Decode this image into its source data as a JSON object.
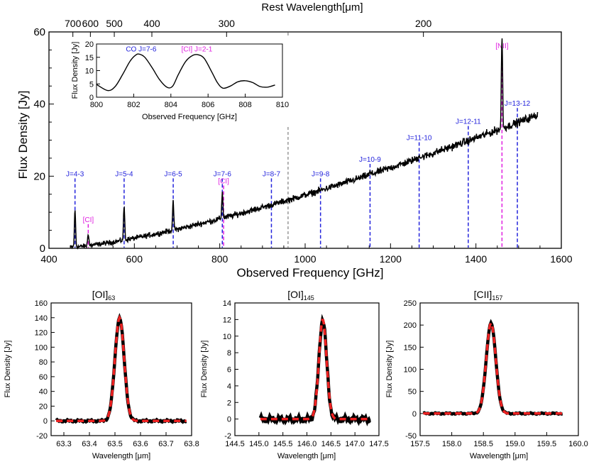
{
  "chart_data": [
    {
      "type": "line",
      "id": "main",
      "xlabel": "Observed Frequency [GHz]",
      "ylabel": "Flux Density [Jy]",
      "top_axis_label": "Rest Wavelength[μm]",
      "xlim": [
        400,
        1600
      ],
      "ylim": [
        0,
        60
      ],
      "xticks": [
        400,
        600,
        800,
        1000,
        1200,
        1400,
        1600
      ],
      "yticks": [
        0,
        20,
        40,
        60
      ],
      "top_ticks": [
        {
          "label": "700",
          "freq": 456
        },
        {
          "label": "600",
          "freq": 497
        },
        {
          "label": "500",
          "freq": 553
        },
        {
          "label": "400",
          "freq": 641
        },
        {
          "label": "300",
          "freq": 816
        },
        {
          "label": "200",
          "freq": 1277
        }
      ],
      "rest_frame_boundary_freq": 960,
      "continuum": {
        "start_freq": 450,
        "end_freq": 1545,
        "start_flux": 0.3,
        "end_flux": 37
      },
      "lines": [
        {
          "label": "J=4-3",
          "freq": 461,
          "peak": 10.5,
          "color": "#2323dc",
          "label_flux": 20
        },
        {
          "label": "[CI]",
          "freq": 492,
          "peak": 4.2,
          "color": "#e020e0",
          "label_flux": 7.3
        },
        {
          "label": "J=5-4",
          "freq": 576,
          "peak": 11.8,
          "color": "#2323dc",
          "label_flux": 20
        },
        {
          "label": "J=6-5",
          "freq": 691,
          "peak": 12.8,
          "color": "#2323dc",
          "label_flux": 20
        },
        {
          "label": "J=7-6",
          "freq": 806,
          "peak": 15.4,
          "color": "#2323dc",
          "label_flux": 20
        },
        {
          "label": "[CI]",
          "freq": 809,
          "peak": 14.5,
          "color": "#e020e0",
          "label_flux": 18
        },
        {
          "label": "J=8-7",
          "freq": 921,
          "peak": 11.6,
          "color": "#2323dc",
          "label_flux": 20
        },
        {
          "label": "J=9-8",
          "freq": 1036,
          "peak": 12.5,
          "color": "#2323dc",
          "label_flux": 20
        },
        {
          "label": "J=10-9",
          "freq": 1152,
          "peak": 21,
          "color": "#2323dc",
          "label_flux": 24
        },
        {
          "label": "J=11-10",
          "freq": 1267,
          "peak": 26,
          "color": "#2323dc",
          "label_flux": 30
        },
        {
          "label": "J=12-11",
          "freq": 1382,
          "peak": 28.5,
          "color": "#2323dc",
          "label_flux": 34.5
        },
        {
          "label": "[NII]",
          "freq": 1461,
          "peak": 58.5,
          "color": "#e020e0",
          "label_flux": 55.5
        },
        {
          "label": "J=13-12",
          "freq": 1497,
          "peak": 34,
          "color": "#2323dc",
          "label_flux": 39.5
        }
      ]
    },
    {
      "type": "line",
      "id": "inset",
      "xlabel": "Observed Frequency [GHz]",
      "ylabel": "Flux Density [Jy]",
      "xlim": [
        800,
        810
      ],
      "ylim": [
        0,
        20
      ],
      "xticks": [
        800,
        802,
        804,
        806,
        808,
        810
      ],
      "yticks": [
        0,
        5,
        10,
        15,
        20
      ],
      "x": [
        800.0,
        800.6,
        801.0,
        801.4,
        801.8,
        802.1,
        802.3,
        802.6,
        803.0,
        803.4,
        803.8,
        804.1,
        804.4,
        804.8,
        805.2,
        805.5,
        805.8,
        806.2,
        806.5,
        806.8,
        807.2,
        807.6,
        808.0,
        808.4,
        808.8,
        809.2,
        809.6
      ],
      "y": [
        4.8,
        2.5,
        4.0,
        8.5,
        13.5,
        15.8,
        16.2,
        15.0,
        11.0,
        6.5,
        3.7,
        4.2,
        8.5,
        13.5,
        15.8,
        15.9,
        14.5,
        9.5,
        5.5,
        3.4,
        4.2,
        5.8,
        6.2,
        5.5,
        4.0,
        3.8,
        4.6
      ],
      "annotations": [
        {
          "label": "CO J=7-6",
          "x": 802.4,
          "y": 17.2,
          "color": "#2323dc"
        },
        {
          "label": "[CI] J=2-1",
          "x": 805.4,
          "y": 17.2,
          "color": "#e020e0"
        }
      ]
    },
    {
      "type": "line",
      "id": "oi63",
      "title_main": "[OI]",
      "title_sub": "63",
      "xlabel": "Wavelength [μm]",
      "ylabel": "Flux Density [Jy]",
      "xlim": [
        63.25,
        63.8
      ],
      "ylim": [
        -20,
        160
      ],
      "xticks": [
        63.3,
        63.4,
        63.5,
        63.6,
        63.7,
        63.8
      ],
      "yticks": [
        -20,
        0,
        20,
        40,
        60,
        80,
        100,
        120,
        140,
        160
      ],
      "tick_decimals": 1,
      "peak_center": 63.518,
      "peak_width": 0.018,
      "peak_height": 140,
      "baseline": 0,
      "x_start": 63.27,
      "x_end": 63.78,
      "noise_amp": 1.5
    },
    {
      "type": "line",
      "id": "oi145",
      "title_main": "[OI]",
      "title_sub": "145",
      "xlabel": "Wavelength [μm]",
      "ylabel": "Flux Density [Jy]",
      "xlim": [
        144.5,
        147.5
      ],
      "ylim": [
        -2,
        14
      ],
      "xticks": [
        144.5,
        145.0,
        145.5,
        146.0,
        146.5,
        147.0,
        147.5
      ],
      "yticks": [
        -2,
        0,
        2,
        4,
        6,
        8,
        10,
        12,
        14
      ],
      "tick_decimals": 1,
      "peak_center": 146.33,
      "peak_width": 0.08,
      "peak_height": 12,
      "baseline": 0,
      "x_start": 145.03,
      "x_end": 147.32,
      "noise_amp": 0.35
    },
    {
      "type": "line",
      "id": "cii157",
      "title_main": "[CII]",
      "title_sub": "157",
      "xlabel": "Wavelength [μm]",
      "ylabel": "Flux Density [Jy]",
      "xlim": [
        157.5,
        160.0
      ],
      "ylim": [
        -50,
        250
      ],
      "xticks": [
        157.5,
        158.0,
        158.5,
        159.0,
        159.5,
        160.0
      ],
      "yticks": [
        -50,
        0,
        50,
        100,
        150,
        200,
        250
      ],
      "tick_decimals": 1,
      "peak_center": 158.62,
      "peak_width": 0.075,
      "peak_height": 205,
      "baseline": 0,
      "x_start": 157.55,
      "x_end": 159.75,
      "noise_amp": 1.5
    }
  ],
  "colors": {
    "co_line": "#2323dc",
    "atomic_line": "#e020e0",
    "data": "#000000",
    "fit": "#ee2222"
  }
}
